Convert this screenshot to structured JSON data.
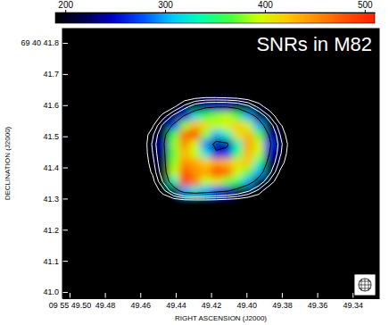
{
  "chart_data": {
    "type": "heatmap",
    "title": "SNRs in M82",
    "x_label": "RIGHT ASCENSION (J2000)",
    "y_label": "DECLINATION (J2000)",
    "x": [
      49.459,
      49.453,
      49.447,
      49.441,
      49.435,
      49.429,
      49.423,
      49.417,
      49.411,
      49.405,
      49.399,
      49.393,
      49.387,
      49.381,
      49.375,
      49.369
    ],
    "y": [
      41.625,
      41.595,
      41.565,
      41.535,
      41.505,
      41.475,
      41.445,
      41.415,
      41.385,
      41.355,
      41.325,
      41.295
    ],
    "z": [
      [
        0,
        0,
        0,
        0,
        10,
        30,
        45,
        45,
        40,
        30,
        10,
        0,
        0,
        0,
        0,
        0
      ],
      [
        0,
        0,
        0,
        40,
        120,
        200,
        235,
        245,
        245,
        225,
        170,
        80,
        15,
        0,
        0,
        0
      ],
      [
        0,
        0,
        70,
        170,
        260,
        320,
        360,
        380,
        390,
        360,
        300,
        220,
        100,
        0,
        0,
        0
      ],
      [
        0,
        40,
        170,
        270,
        380,
        430,
        410,
        390,
        400,
        420,
        390,
        300,
        190,
        60,
        0,
        0
      ],
      [
        0,
        90,
        220,
        360,
        470,
        490,
        380,
        300,
        330,
        410,
        430,
        370,
        240,
        100,
        0,
        0
      ],
      [
        0,
        110,
        240,
        380,
        450,
        400,
        290,
        230,
        240,
        330,
        440,
        400,
        270,
        120,
        20,
        0
      ],
      [
        0,
        100,
        230,
        370,
        430,
        390,
        320,
        260,
        270,
        350,
        430,
        390,
        250,
        110,
        10,
        0
      ],
      [
        0,
        80,
        220,
        380,
        450,
        440,
        420,
        440,
        430,
        410,
        420,
        340,
        220,
        80,
        0,
        0
      ],
      [
        0,
        60,
        200,
        390,
        480,
        450,
        440,
        490,
        470,
        400,
        370,
        300,
        170,
        40,
        0,
        0
      ],
      [
        0,
        30,
        160,
        330,
        500,
        460,
        390,
        410,
        380,
        350,
        300,
        210,
        90,
        0,
        0,
        0
      ],
      [
        0,
        0,
        80,
        200,
        300,
        320,
        300,
        280,
        260,
        220,
        160,
        80,
        0,
        0,
        0,
        0
      ],
      [
        0,
        0,
        0,
        20,
        40,
        45,
        45,
        40,
        30,
        20,
        0,
        0,
        0,
        0,
        0,
        0
      ]
    ],
    "xlim": [
      49.504,
      49.325
    ],
    "ylim": [
      40.98,
      41.846
    ],
    "xticks": [
      {
        "value": 49.5,
        "label": "09 55 49.50"
      },
      49.48,
      49.46,
      49.44,
      49.42,
      {
        "value": 49.4,
        "label": "49.40"
      },
      49.38,
      49.36,
      49.34
    ],
    "yticks": [
      {
        "value": 41.0,
        "label": "41.0"
      },
      41.1,
      41.2,
      41.3,
      41.4,
      41.5,
      41.6,
      41.7,
      {
        "value": 41.8,
        "label": "69 40 41.8"
      }
    ],
    "color_range": [
      190,
      510
    ],
    "color_ticks": [
      200,
      300,
      400,
      500
    ],
    "contour_levels": [
      50,
      100,
      150,
      250
    ]
  }
}
